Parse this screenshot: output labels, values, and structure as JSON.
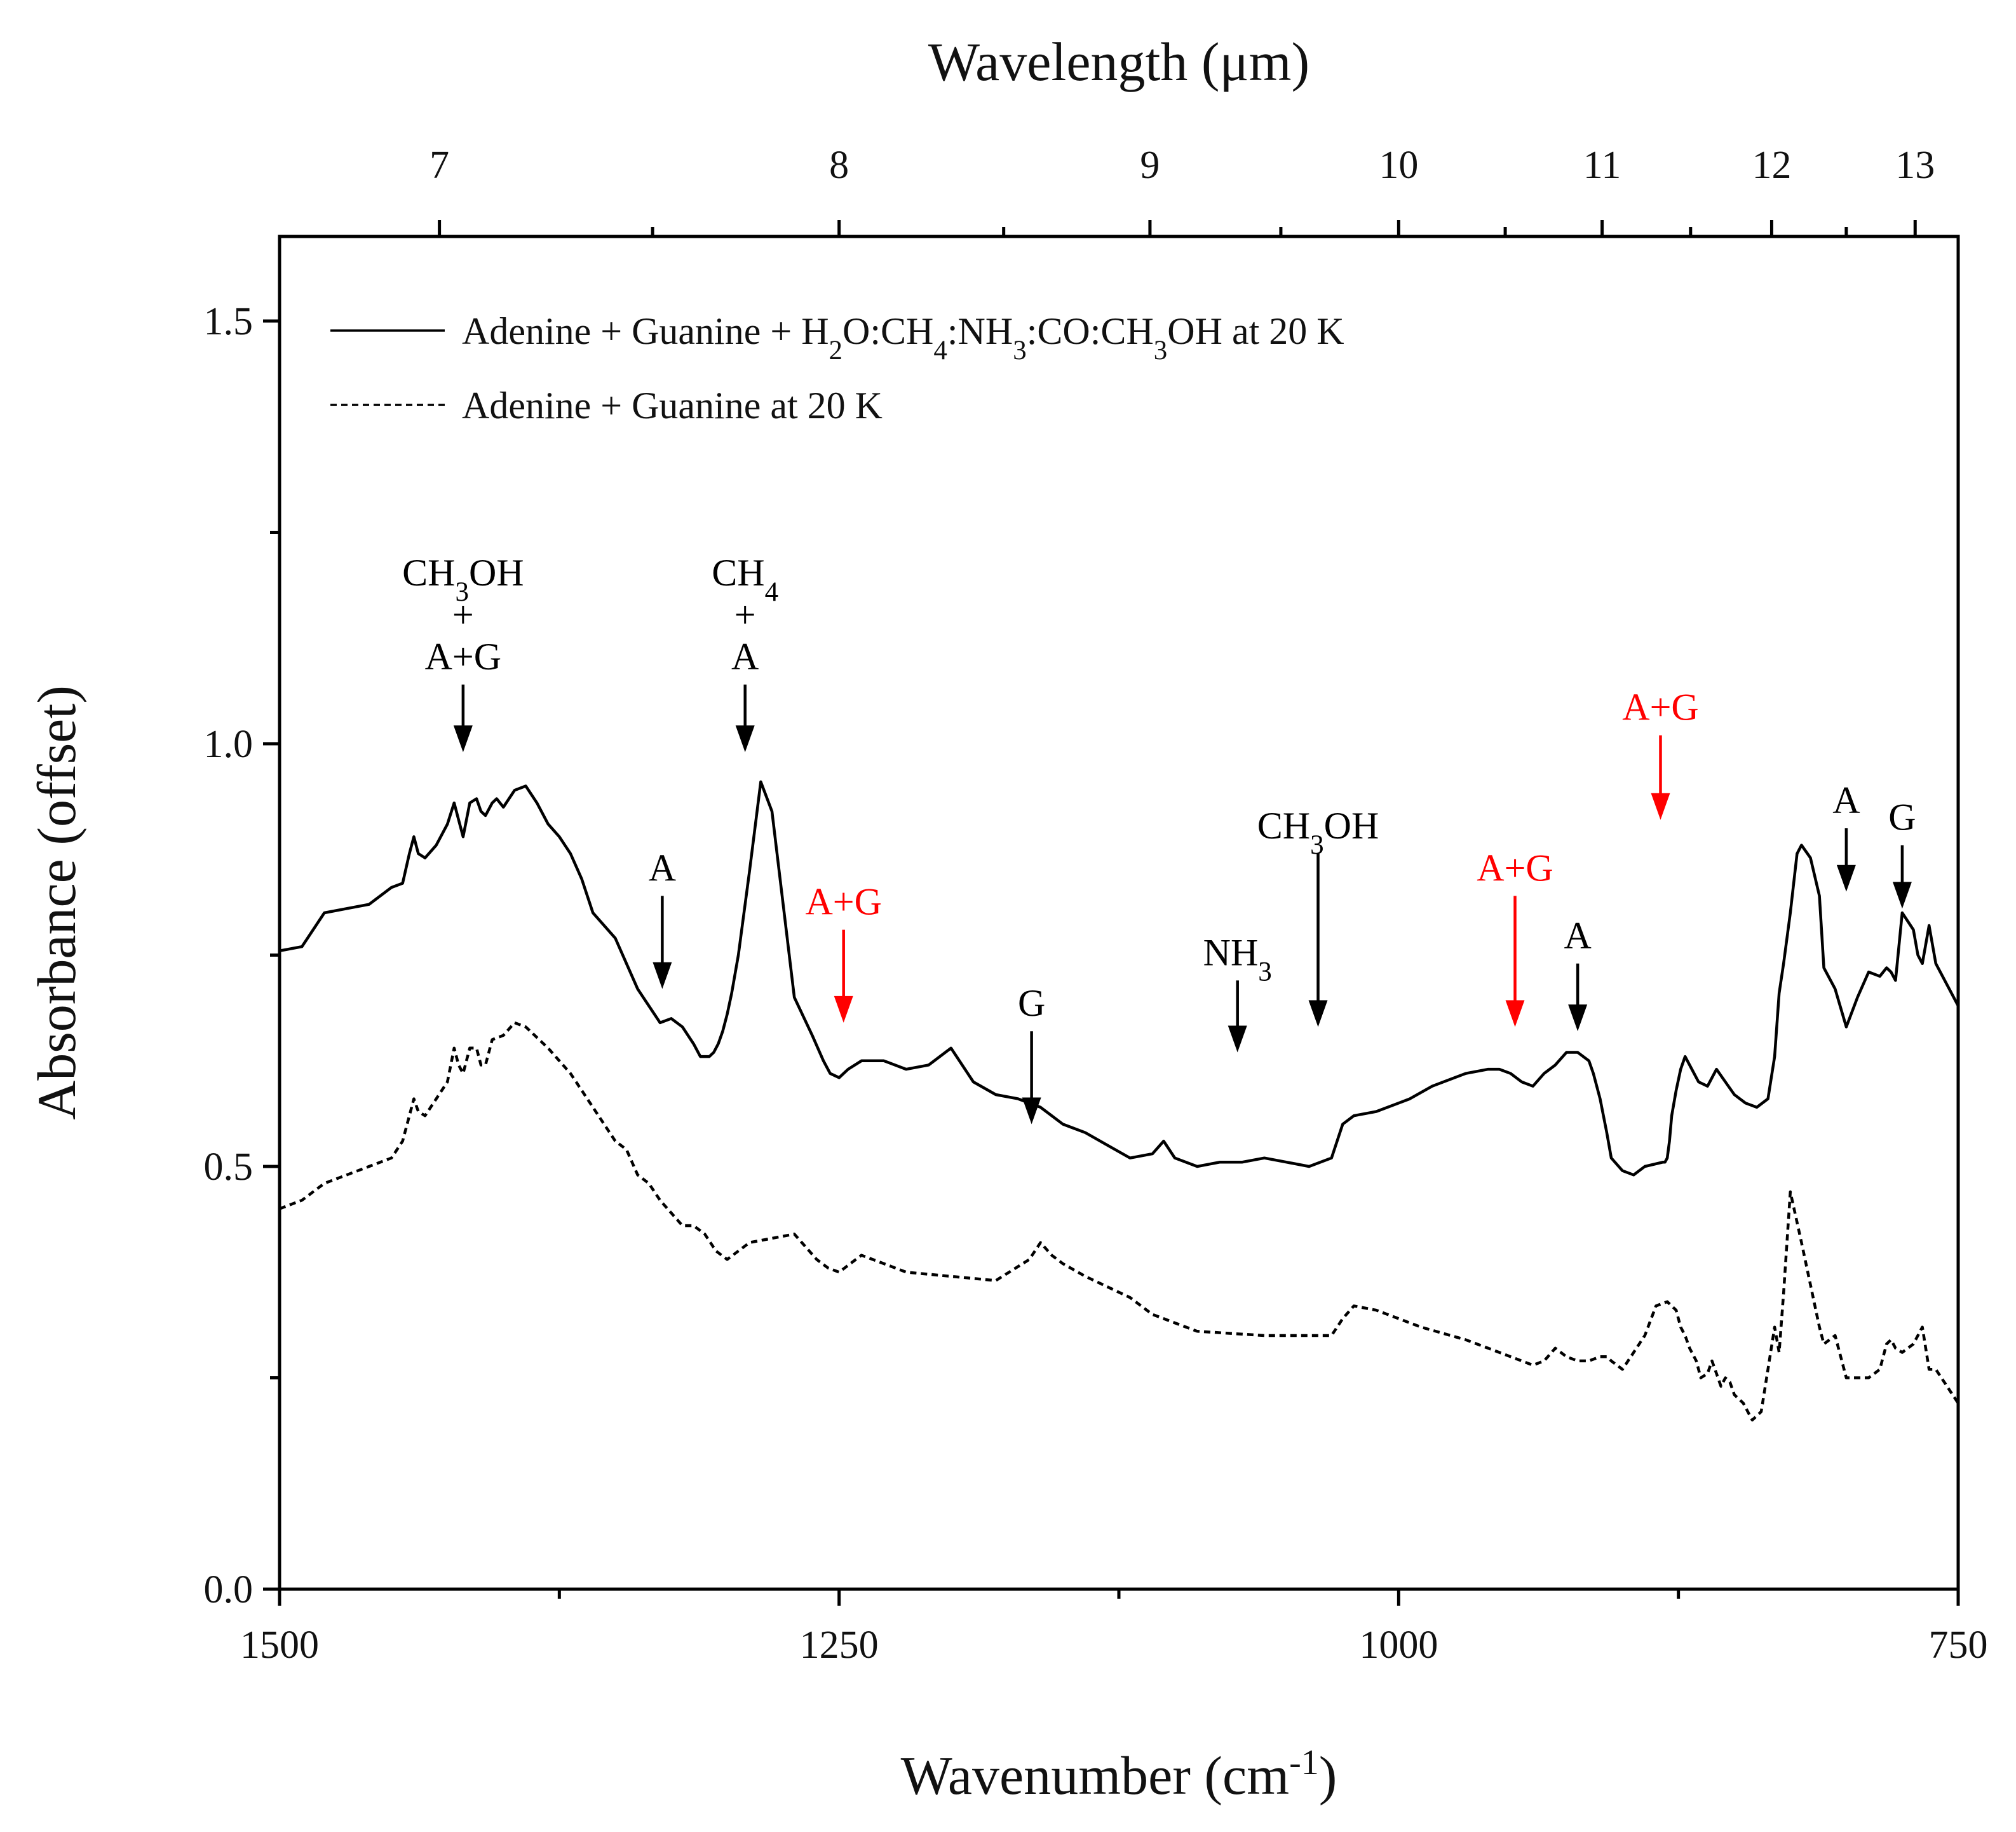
{
  "chart_data": {
    "type": "line",
    "xlabel": "Wavenumber (cm",
    "xlabel_sup": "-1",
    "xlabel_end": ")",
    "x2label": "Wavelength (μm)",
    "ylabel": "Absorbance (offset)",
    "xlim": [
      1500,
      750
    ],
    "ylim": [
      0.0,
      1.6
    ],
    "x_ticks": [
      1500,
      1250,
      1000,
      750
    ],
    "x_tick_labels": [
      "1500",
      "1250",
      "1000",
      "750"
    ],
    "x_minor_ticks": [
      1375,
      1125,
      875
    ],
    "y_ticks": [
      0.0,
      0.5,
      1.0,
      1.5
    ],
    "y_tick_labels": [
      "0.0",
      "0.5",
      "1.0",
      "1.5"
    ],
    "y_minor_ticks": [
      0.25,
      0.75,
      1.25
    ],
    "x2_ticks": [
      7,
      8,
      9,
      10,
      11,
      12,
      13
    ],
    "x2_tick_labels": [
      "7",
      "8",
      "9",
      "10",
      "11",
      "12",
      "13"
    ],
    "x2_minor_ticks": [
      7.5,
      8.5,
      9.5,
      10.5,
      11.5,
      12.5
    ],
    "series": [
      {
        "name": "Adenine + Guanine + H2O:CH4:NH3:CO:CH3OH at 20 K",
        "style": "solid",
        "x": [
          1500,
          1490,
          1480,
          1470,
          1460,
          1450,
          1445,
          1442,
          1440,
          1438,
          1435,
          1430,
          1425,
          1422,
          1420,
          1418,
          1415,
          1412,
          1410,
          1408,
          1405,
          1403,
          1400,
          1395,
          1390,
          1385,
          1380,
          1375,
          1370,
          1365,
          1360,
          1350,
          1345,
          1340,
          1335,
          1330,
          1325,
          1320,
          1315,
          1312,
          1310,
          1308,
          1306,
          1304,
          1302,
          1300,
          1298,
          1295,
          1290,
          1285,
          1280,
          1270,
          1262,
          1257,
          1254,
          1250,
          1246,
          1240,
          1230,
          1220,
          1210,
          1200,
          1190,
          1180,
          1170,
          1165,
          1160,
          1155,
          1150,
          1140,
          1130,
          1120,
          1110,
          1105,
          1100,
          1090,
          1080,
          1070,
          1060,
          1050,
          1040,
          1030,
          1025,
          1020,
          1010,
          1000,
          995,
          985,
          970,
          960,
          955,
          950,
          945,
          940,
          935,
          930,
          925,
          920,
          915,
          913,
          910,
          907,
          905,
          900,
          895,
          890,
          882,
          881,
          880,
          879,
          878,
          876,
          874,
          872,
          870,
          866,
          862,
          858,
          854,
          850,
          845,
          840,
          835,
          832,
          830,
          828,
          825,
          822,
          820,
          816,
          812,
          810,
          805,
          800,
          795,
          790,
          785,
          782,
          780,
          778,
          775,
          770,
          768,
          766,
          763,
          760,
          755,
          750
        ],
        "y": [
          0.755,
          0.76,
          0.8,
          0.805,
          0.81,
          0.83,
          0.835,
          0.87,
          0.89,
          0.87,
          0.865,
          0.88,
          0.905,
          0.93,
          0.91,
          0.89,
          0.93,
          0.935,
          0.92,
          0.915,
          0.93,
          0.935,
          0.925,
          0.945,
          0.95,
          0.93,
          0.905,
          0.89,
          0.87,
          0.84,
          0.8,
          0.77,
          0.74,
          0.71,
          0.69,
          0.67,
          0.675,
          0.665,
          0.645,
          0.63,
          0.63,
          0.63,
          0.635,
          0.645,
          0.66,
          0.68,
          0.705,
          0.75,
          0.85,
          0.955,
          0.92,
          0.7,
          0.655,
          0.625,
          0.61,
          0.605,
          0.615,
          0.625,
          0.625,
          0.615,
          0.62,
          0.64,
          0.6,
          0.585,
          0.58,
          0.575,
          0.57,
          0.56,
          0.55,
          0.54,
          0.525,
          0.51,
          0.515,
          0.53,
          0.51,
          0.5,
          0.505,
          0.505,
          0.51,
          0.505,
          0.5,
          0.51,
          0.55,
          0.56,
          0.565,
          0.575,
          0.58,
          0.595,
          0.61,
          0.615,
          0.615,
          0.61,
          0.6,
          0.595,
          0.61,
          0.62,
          0.635,
          0.635,
          0.625,
          0.61,
          0.58,
          0.54,
          0.51,
          0.495,
          0.49,
          0.5,
          0.505,
          0.505,
          0.51,
          0.53,
          0.56,
          0.59,
          0.615,
          0.63,
          0.62,
          0.6,
          0.595,
          0.615,
          0.6,
          0.585,
          0.575,
          0.57,
          0.58,
          0.63,
          0.705,
          0.74,
          0.8,
          0.87,
          0.88,
          0.865,
          0.82,
          0.735,
          0.71,
          0.665,
          0.7,
          0.73,
          0.725,
          0.735,
          0.73,
          0.72,
          0.8,
          0.78,
          0.75,
          0.74,
          0.785,
          0.74,
          0.715,
          0.69
        ]
      },
      {
        "name": "Adenine + Guanine at 20 K",
        "style": "dashed",
        "x": [
          1500,
          1490,
          1480,
          1470,
          1460,
          1450,
          1445,
          1442,
          1440,
          1438,
          1435,
          1430,
          1425,
          1422,
          1420,
          1418,
          1415,
          1412,
          1410,
          1408,
          1405,
          1400,
          1395,
          1390,
          1380,
          1370,
          1360,
          1350,
          1345,
          1340,
          1335,
          1330,
          1320,
          1315,
          1310,
          1305,
          1300,
          1290,
          1270,
          1260,
          1255,
          1250,
          1245,
          1240,
          1230,
          1220,
          1200,
          1180,
          1165,
          1160,
          1155,
          1150,
          1140,
          1120,
          1110,
          1105,
          1100,
          1090,
          1060,
          1040,
          1030,
          1025,
          1020,
          1010,
          1000,
          990,
          970,
          960,
          945,
          940,
          935,
          930,
          925,
          920,
          915,
          910,
          907,
          905,
          900,
          895,
          890,
          885,
          880,
          876,
          874,
          872,
          870,
          867,
          865,
          862,
          860,
          858,
          856,
          854,
          852,
          850,
          846,
          842,
          838,
          835,
          832,
          830,
          828,
          825,
          820,
          812,
          810,
          805,
          800,
          790,
          785,
          782,
          780,
          778,
          775,
          770,
          766,
          763,
          760,
          755,
          750
        ],
        "y": [
          0.45,
          0.46,
          0.48,
          0.49,
          0.5,
          0.51,
          0.53,
          0.56,
          0.58,
          0.565,
          0.56,
          0.58,
          0.6,
          0.64,
          0.62,
          0.61,
          0.64,
          0.64,
          0.62,
          0.62,
          0.65,
          0.655,
          0.67,
          0.665,
          0.64,
          0.61,
          0.57,
          0.53,
          0.52,
          0.49,
          0.48,
          0.46,
          0.43,
          0.43,
          0.42,
          0.4,
          0.39,
          0.41,
          0.42,
          0.39,
          0.38,
          0.375,
          0.385,
          0.395,
          0.385,
          0.375,
          0.37,
          0.365,
          0.39,
          0.41,
          0.395,
          0.385,
          0.37,
          0.345,
          0.325,
          0.32,
          0.315,
          0.305,
          0.3,
          0.3,
          0.3,
          0.32,
          0.335,
          0.33,
          0.32,
          0.31,
          0.295,
          0.285,
          0.27,
          0.265,
          0.27,
          0.285,
          0.275,
          0.27,
          0.27,
          0.275,
          0.275,
          0.27,
          0.26,
          0.28,
          0.3,
          0.335,
          0.34,
          0.33,
          0.31,
          0.3,
          0.285,
          0.27,
          0.25,
          0.255,
          0.27,
          0.255,
          0.24,
          0.25,
          0.245,
          0.23,
          0.22,
          0.2,
          0.21,
          0.26,
          0.31,
          0.28,
          0.35,
          0.47,
          0.41,
          0.31,
          0.29,
          0.3,
          0.25,
          0.25,
          0.26,
          0.29,
          0.295,
          0.285,
          0.28,
          0.29,
          0.31,
          0.26,
          0.26,
          0.24,
          0.22
        ]
      }
    ],
    "legend": {
      "position": "top-left",
      "entries": [
        {
          "style": "solid",
          "parts": [
            "Adenine + Guanine + H",
            "2",
            "O:CH",
            "4",
            ":NH",
            "3",
            ":CO:CH",
            "3",
            "OH at 20 K"
          ]
        },
        {
          "style": "dashed",
          "parts": [
            "Adenine + Guanine at 20 K"
          ]
        }
      ]
    },
    "annotations": [
      {
        "lines": [
          [
            "CH",
            "3",
            "OH"
          ],
          [
            "+"
          ],
          [
            "A+G"
          ]
        ],
        "color": "#000000",
        "x": 1418,
        "y_tip": 0.99,
        "y_tail": 1.07
      },
      {
        "lines": [
          [
            "CH",
            "4",
            ""
          ],
          [
            "+"
          ],
          [
            "A"
          ]
        ],
        "color": "#000000",
        "x": 1292,
        "y_tip": 0.99,
        "y_tail": 1.07
      },
      {
        "lines": [
          [
            "A"
          ]
        ],
        "color": "#000000",
        "x": 1329,
        "y_tip": 0.71,
        "y_tail": 0.82
      },
      {
        "lines": [
          [
            "A+G"
          ]
        ],
        "color": "#ff0000",
        "x": 1248,
        "y_tip": 0.67,
        "y_tail": 0.78
      },
      {
        "lines": [
          [
            "G"
          ]
        ],
        "color": "#000000",
        "x": 1164,
        "y_tip": 0.55,
        "y_tail": 0.66
      },
      {
        "lines": [
          [
            "NH",
            "3",
            ""
          ]
        ],
        "color": "#000000",
        "x": 1072,
        "y_tip": 0.635,
        "y_tail": 0.72
      },
      {
        "lines": [
          [
            "CH",
            "3",
            "OH"
          ]
        ],
        "color": "#000000",
        "x": 1036,
        "y_tip": 0.665,
        "y_tail": 0.87
      },
      {
        "lines": [
          [
            "A+G"
          ]
        ],
        "color": "#ff0000",
        "x": 948,
        "y_tip": 0.665,
        "y_tail": 0.82
      },
      {
        "lines": [
          [
            "A"
          ]
        ],
        "color": "#000000",
        "x": 920,
        "y_tip": 0.66,
        "y_tail": 0.74
      },
      {
        "lines": [
          [
            "A+G"
          ]
        ],
        "color": "#ff0000",
        "x": 883,
        "y_tip": 0.91,
        "y_tail": 1.01
      },
      {
        "lines": [
          [
            "A"
          ]
        ],
        "color": "#000000",
        "x": 800,
        "y_tip": 0.825,
        "y_tail": 0.9
      },
      {
        "lines": [
          [
            "G"
          ]
        ],
        "color": "#000000",
        "x": 775,
        "y_tip": 0.805,
        "y_tail": 0.88
      }
    ],
    "colors": {
      "axis": "#000000",
      "text": "#111111",
      "red": "#ff0000"
    }
  }
}
